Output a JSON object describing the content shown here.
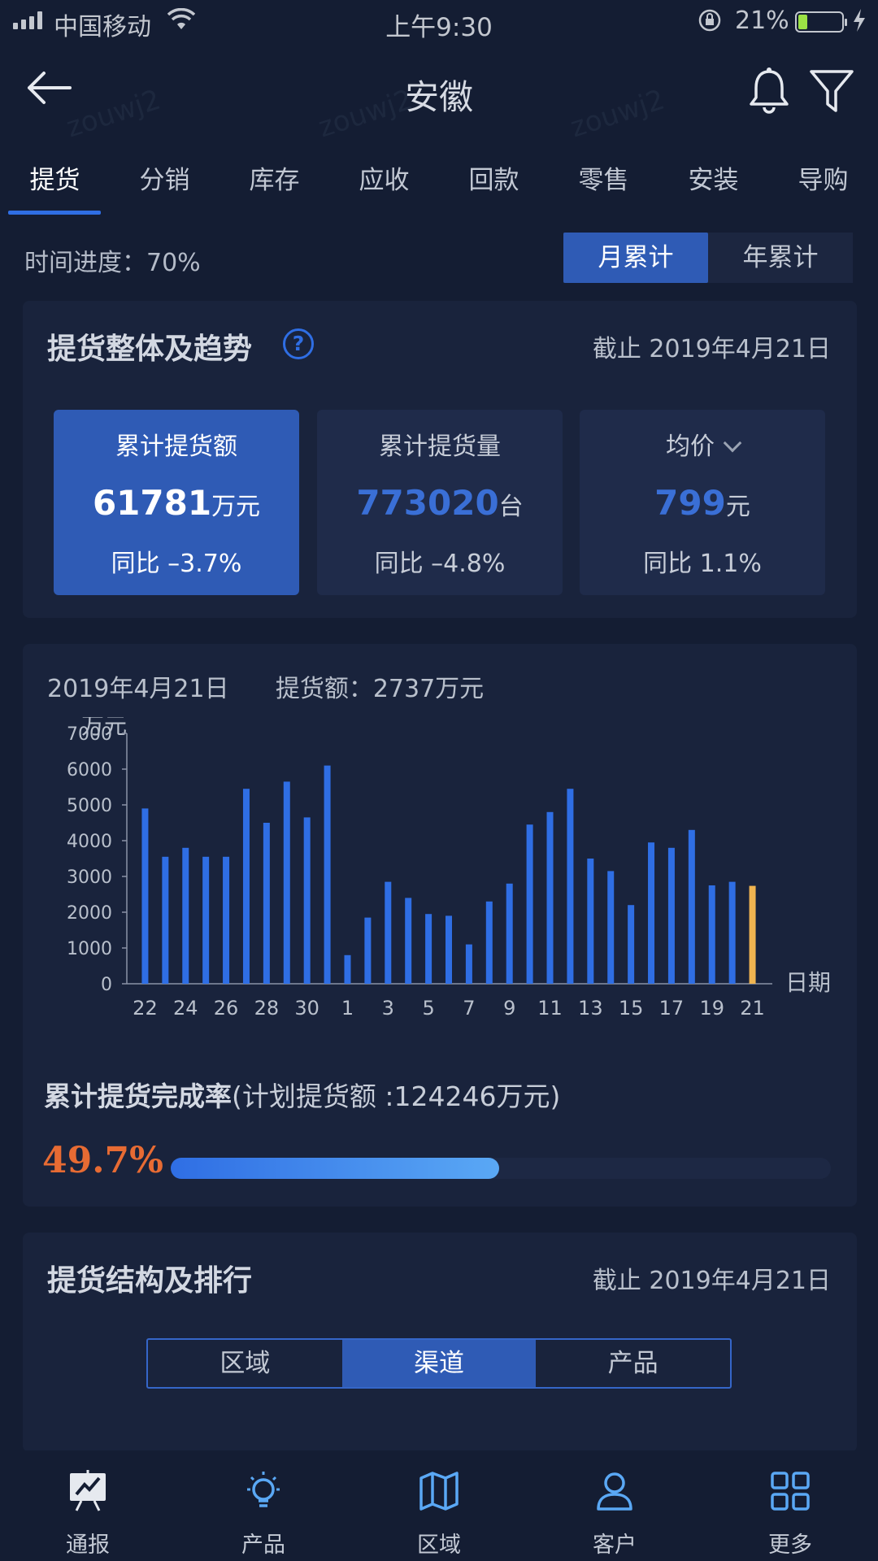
{
  "status_bar": {
    "carrier": "中国移动",
    "time": "上午9:30",
    "battery": "21%",
    "battery_level": 0.21
  },
  "nav": {
    "title": "安徽"
  },
  "tabs": [
    {
      "label": "提货",
      "active": true
    },
    {
      "label": "分销"
    },
    {
      "label": "库存"
    },
    {
      "label": "应收"
    },
    {
      "label": "回款"
    },
    {
      "label": "零售"
    },
    {
      "label": "安装"
    },
    {
      "label": "导购"
    }
  ],
  "progress": {
    "label": "时间进度：70%"
  },
  "period_toggle": {
    "monthly": "月累计",
    "yearly": "年累计",
    "selected": "monthly"
  },
  "overview": {
    "title": "提货整体及趋势",
    "help_icon": "?",
    "as_of": "截止 2019年4月21日",
    "kpis": [
      {
        "label": "累计提货额",
        "value": "61781",
        "unit": "万元",
        "yoy": "同比 –3.7%",
        "active": true
      },
      {
        "label": "累计提货量",
        "value": "773020",
        "unit": "台",
        "yoy": "同比 –4.8%"
      },
      {
        "label": "均价",
        "value": "799",
        "unit": "元",
        "yoy": "同比 1.1%",
        "dropdown": true
      }
    ]
  },
  "detail": {
    "date": "2019年4月21日",
    "amount_label": "提货额：2737万元"
  },
  "chart_data": {
    "type": "bar",
    "ylabel": "万元",
    "xlabel": "日期",
    "ylim": [
      0,
      7000
    ],
    "yticks": [
      0,
      1000,
      2000,
      3000,
      4000,
      5000,
      6000,
      7000
    ],
    "categories": [
      "22",
      "23",
      "24",
      "25",
      "26",
      "27",
      "28",
      "29",
      "30",
      "31",
      "1",
      "2",
      "3",
      "4",
      "5",
      "6",
      "7",
      "8",
      "9",
      "10",
      "11",
      "12",
      "13",
      "14",
      "15",
      "16",
      "17",
      "18",
      "19",
      "20",
      "21"
    ],
    "xtick_labels": [
      "22",
      "24",
      "26",
      "28",
      "30",
      "1",
      "3",
      "5",
      "7",
      "9",
      "11",
      "13",
      "15",
      "17",
      "19",
      "21"
    ],
    "values": [
      4900,
      3550,
      3800,
      3550,
      3550,
      5450,
      4500,
      5650,
      4650,
      6100,
      800,
      1850,
      2850,
      2400,
      1950,
      1900,
      1100,
      2300,
      2800,
      4450,
      4800,
      5450,
      3500,
      3150,
      2200,
      3950,
      3800,
      4300,
      2750,
      2850,
      2737
    ],
    "colors": {
      "bar": "#2f6ee4",
      "highlight": "#f0b450"
    },
    "highlight_index": 30
  },
  "completion": {
    "title": "累计提货完成率",
    "plan": "(计划提货额 :124246万元)",
    "pct_label": "49.7%",
    "value": 0.497
  },
  "structure": {
    "title": "提货结构及排行",
    "as_of": "截止 2019年4月21日",
    "segments": [
      {
        "label": "区域"
      },
      {
        "label": "渠道",
        "active": true
      },
      {
        "label": "产品"
      }
    ]
  },
  "bottom_nav": [
    {
      "label": "通报",
      "icon": "report-icon"
    },
    {
      "label": "产品",
      "icon": "lightbulb-icon"
    },
    {
      "label": "区域",
      "icon": "map-icon"
    },
    {
      "label": "客户",
      "icon": "user-icon"
    },
    {
      "label": "更多",
      "icon": "grid-icon"
    }
  ],
  "watermark": "zouwj2"
}
